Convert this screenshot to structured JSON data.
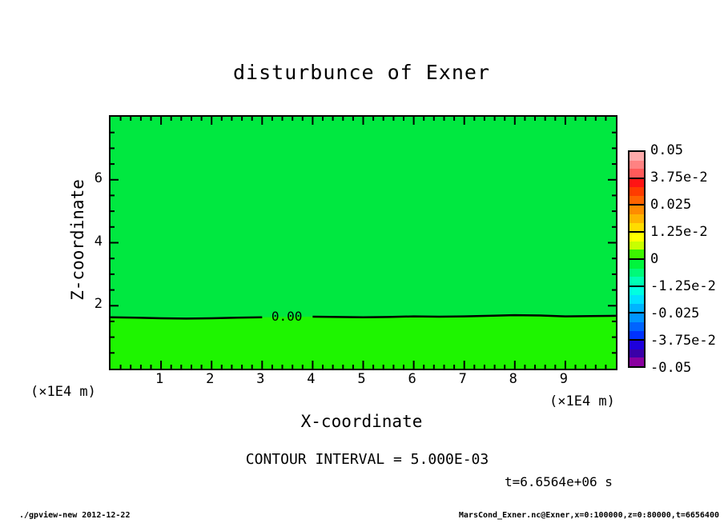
{
  "title": "disturbunce of Exner",
  "axes": {
    "x": {
      "label": "X-coordinate",
      "unit": "(×1E4 m)"
    },
    "z": {
      "label": "Z-coordinate",
      "unit": "(×1E4 m)"
    }
  },
  "annotations": {
    "contour_interval": "CONTOUR INTERVAL = 5.000E-03",
    "time": "t=6.6564e+06 s"
  },
  "footer": {
    "left": "./gpview-new  2012-12-22",
    "right": "MarsCond_Exner.nc@Exner,x=0:100000,z=0:80000,t=6656400"
  },
  "colorbar": {
    "labels": [
      "0.05",
      "3.75e-2",
      "0.025",
      "1.25e-2",
      "0",
      "-1.25e-2",
      "-0.025",
      "-3.75e-2",
      "-0.05"
    ],
    "band_colors": [
      "#ffaaaa",
      "#ff8282",
      "#ff5a5a",
      "#ff1414",
      "#ff3c00",
      "#ff6400",
      "#ff8c00",
      "#ffb400",
      "#ffdc00",
      "#ffff00",
      "#c8ff00",
      "#3cf500",
      "#00f53c",
      "#00fa78",
      "#00ffb4",
      "#00ffe1",
      "#00e1ff",
      "#00b4ff",
      "#0096ff",
      "#0064ff",
      "#0032ff",
      "#1e00dc",
      "#3a00a8",
      "#8a00a0"
    ]
  },
  "chart_data": {
    "type": "heatmap",
    "subtype": "filled-contour",
    "title": "disturbunce of Exner",
    "xlabel": "X-coordinate (x1E4 m)",
    "ylabel": "Z-coordinate (x1E4 m)",
    "xlim": [
      0,
      10
    ],
    "ylim": [
      0,
      8
    ],
    "x_ticks": [
      1,
      2,
      3,
      4,
      5,
      6,
      7,
      8,
      9
    ],
    "z_ticks": [
      2,
      4,
      6
    ],
    "x_minor_step": 0.2,
    "z_minor_step": 0.5,
    "contour_interval": 0.005,
    "levels": [
      0.05,
      0.0375,
      0.025,
      0.0125,
      0,
      -0.0125,
      -0.025,
      -0.0375,
      -0.05
    ],
    "region_upper_color": "#00e840",
    "region_lower_color": "#1ef500",
    "field_description": "Disturbance ~0 everywhere: slightly negative (0 to -1.25e-2 band) above the zero contour at z~1.65, slightly positive (0 to +1.25e-2 band) below it",
    "zero_contour": {
      "label": "0.00",
      "label_x": 3.5,
      "label_z": 1.645,
      "gap": [
        3.0,
        4.0
      ],
      "x": [
        0,
        0.5,
        1,
        1.5,
        2,
        2.5,
        3,
        3.5,
        4,
        4.5,
        5,
        5.5,
        6,
        6.5,
        7,
        7.5,
        8,
        8.5,
        9,
        9.5,
        10
      ],
      "z": [
        1.63,
        1.62,
        1.6,
        1.59,
        1.6,
        1.62,
        1.63,
        1.64,
        1.65,
        1.64,
        1.63,
        1.64,
        1.66,
        1.65,
        1.66,
        1.68,
        1.7,
        1.69,
        1.66,
        1.67,
        1.68
      ]
    }
  }
}
